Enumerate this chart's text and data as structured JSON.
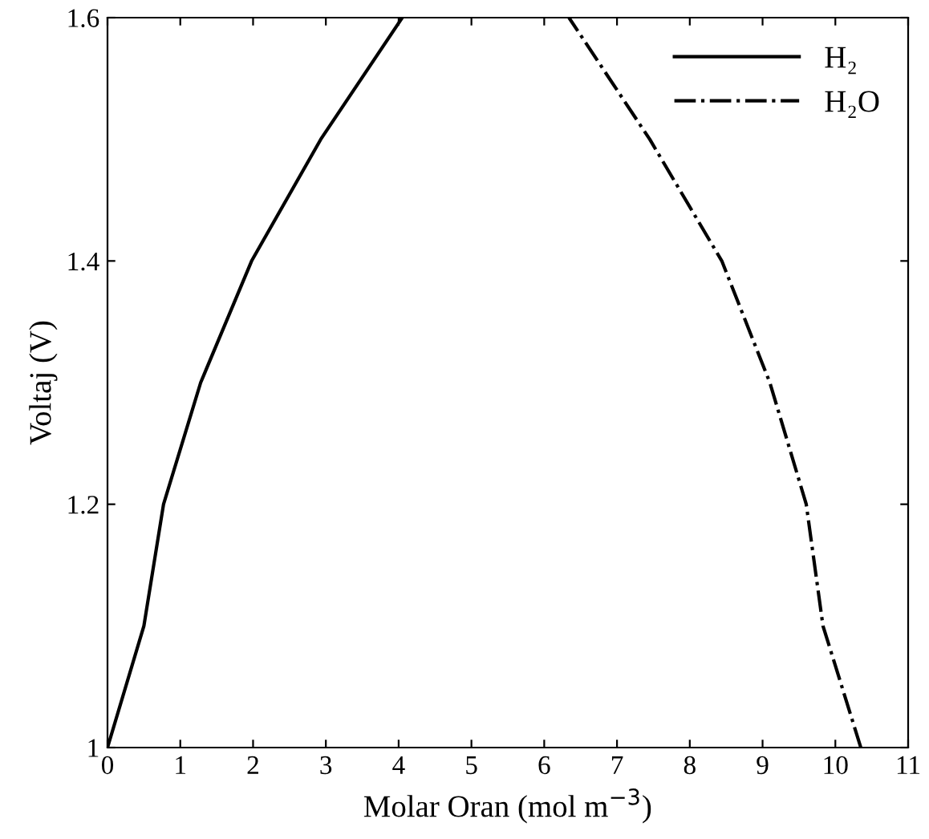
{
  "chart_data": {
    "type": "line",
    "xlabel": "Molar Oran (mol m$^{−3}$)",
    "ylabel": "Voltaj (V)",
    "xlim": [
      0,
      11
    ],
    "ylim": [
      1,
      1.6
    ],
    "xticks": [
      0,
      1,
      2,
      3,
      4,
      5,
      6,
      7,
      8,
      9,
      10,
      11
    ],
    "yticks": [
      1,
      {
        "value": 1.2,
        "label": "1.2"
      },
      {
        "value": 1.4,
        "label": "1.4"
      },
      {
        "value": 1.6,
        "label": "1.6"
      }
    ],
    "grid": false,
    "legend": "top right",
    "marker": "none",
    "series": [
      {
        "name": "H₂",
        "color": "#000000",
        "line_style": "solid",
        "x": [
          0,
          0.5,
          0.77,
          1.28,
          1.98,
          2.93,
          4.05
        ],
        "values": [
          1.0,
          1.1,
          1.2,
          1.3,
          1.4,
          1.5,
          1.6
        ]
      },
      {
        "name": "H₂O",
        "color": "#000000",
        "line_style": "dashdot",
        "x": [
          10.35,
          9.83,
          9.6,
          9.1,
          8.44,
          7.45,
          6.34
        ],
        "values": [
          1.0,
          1.1,
          1.2,
          1.3,
          1.4,
          1.5,
          1.6
        ]
      }
    ]
  }
}
